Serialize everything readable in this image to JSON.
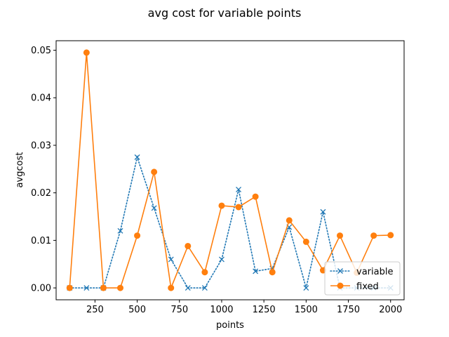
{
  "chart_data": {
    "type": "line",
    "title": "avg cost for variable points",
    "xlabel": "points",
    "ylabel": "avgcost",
    "xlim": [
      20,
      2080
    ],
    "ylim": [
      -0.0025,
      0.052
    ],
    "xticks": [
      250,
      500,
      750,
      1000,
      1250,
      1500,
      1750,
      2000
    ],
    "xtick_labels": [
      "250",
      "500",
      "750",
      "1000",
      "1250",
      "1500",
      "1750",
      "2000"
    ],
    "yticks": [
      0.0,
      0.01,
      0.02,
      0.03,
      0.04,
      0.05
    ],
    "ytick_labels": [
      "0.00",
      "0.01",
      "0.02",
      "0.03",
      "0.04",
      "0.05"
    ],
    "grid": false,
    "legend_position": "lower-right",
    "x": [
      100,
      200,
      300,
      400,
      500,
      600,
      700,
      800,
      900,
      1000,
      1100,
      1200,
      1300,
      1400,
      1500,
      1600,
      1700,
      1800,
      1900,
      2000
    ],
    "series": [
      {
        "name": "variable",
        "color": "#1f77b4",
        "linestyle": "dotted",
        "marker": "x",
        "values": [
          0.0,
          0.0,
          0.0,
          0.012,
          0.0275,
          0.0168,
          0.006,
          0.0,
          0.0,
          0.006,
          0.0207,
          0.0035,
          0.0041,
          0.0128,
          0.0,
          0.016,
          0.0,
          0.0,
          0.0,
          0.0
        ]
      },
      {
        "name": "fixed",
        "color": "#ff7f0e",
        "linestyle": "solid",
        "marker": "o",
        "values": [
          0.0,
          0.0495,
          0.0,
          0.0,
          0.011,
          0.0244,
          0.0,
          0.0088,
          0.0033,
          0.0173,
          0.017,
          0.0192,
          0.0033,
          0.0142,
          0.0097,
          0.0037,
          0.011,
          0.0032,
          0.011,
          0.0111
        ]
      }
    ]
  }
}
